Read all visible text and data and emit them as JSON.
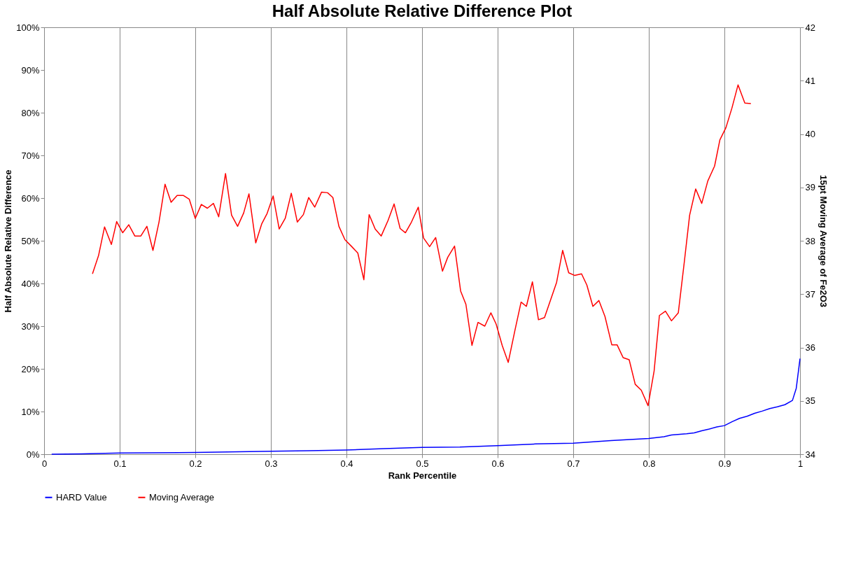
{
  "chart_data": {
    "type": "line",
    "title": "Half Absolute Relative Difference Plot",
    "xlabel": "Rank Percentile",
    "ylabel": "Half Absolute Relative Difference",
    "y2label": "15pt Moving Average of Fe2O3",
    "xlim": [
      0,
      1
    ],
    "xticks": [
      0,
      0.1,
      0.2,
      0.3,
      0.4,
      0.5,
      0.6,
      0.7,
      0.8,
      0.9,
      1
    ],
    "ylim": [
      0,
      100
    ],
    "yticks": [
      {
        "value": 0,
        "label": "0%"
      },
      {
        "value": 10,
        "label": "10%"
      },
      {
        "value": 20,
        "label": "20%"
      },
      {
        "value": 30,
        "label": "30%"
      },
      {
        "value": 40,
        "label": "40%"
      },
      {
        "value": 50,
        "label": "50%"
      },
      {
        "value": 60,
        "label": "60%"
      },
      {
        "value": 70,
        "label": "70%"
      },
      {
        "value": 80,
        "label": "80%"
      },
      {
        "value": 90,
        "label": "90%"
      },
      {
        "value": 100,
        "label": "100%"
      }
    ],
    "y2lim": [
      34,
      42
    ],
    "y2ticks": [
      34,
      35,
      36,
      37,
      38,
      39,
      40,
      41,
      42
    ],
    "grid": "x",
    "legend": "bottom",
    "marker": "none",
    "line_style": "solid",
    "series": [
      {
        "name": "HARD Value",
        "color": "#0000ff",
        "x": [
          0.01,
          0.05,
          0.1,
          0.2,
          0.3,
          0.35,
          0.4,
          0.45,
          0.5,
          0.55,
          0.6,
          0.65,
          0.7,
          0.75,
          0.8,
          0.82,
          0.83,
          0.85,
          0.86,
          0.87,
          0.88,
          0.89,
          0.9,
          0.91,
          0.92,
          0.93,
          0.94,
          0.95,
          0.96,
          0.97,
          0.98,
          0.99,
          0.995,
          1.0
        ],
        "values": [
          0,
          0.1,
          0.3,
          0.4,
          0.7,
          0.8,
          1.0,
          1.3,
          1.6,
          1.7,
          2.0,
          2.4,
          2.6,
          3.2,
          3.7,
          4.1,
          4.5,
          4.8,
          5.0,
          5.5,
          5.9,
          6.4,
          6.7,
          7.6,
          8.4,
          8.9,
          9.6,
          10.1,
          10.7,
          11.1,
          11.6,
          12.6,
          15.4,
          22.4
        ]
      },
      {
        "name": "Moving Average",
        "color": "#ff0000",
        "axis": "y2",
        "x": [
          0.064,
          0.072,
          0.08,
          0.089,
          0.096,
          0.104,
          0.112,
          0.12,
          0.128,
          0.136,
          0.144,
          0.152,
          0.16,
          0.168,
          0.176,
          0.184,
          0.192,
          0.2,
          0.208,
          0.216,
          0.224,
          0.231,
          0.24,
          0.248,
          0.256,
          0.264,
          0.271,
          0.28,
          0.288,
          0.295,
          0.303,
          0.311,
          0.319,
          0.327,
          0.335,
          0.343,
          0.35,
          0.358,
          0.367,
          0.375,
          0.382,
          0.39,
          0.398,
          0.407,
          0.415,
          0.423,
          0.43,
          0.438,
          0.446,
          0.455,
          0.463,
          0.471,
          0.478,
          0.486,
          0.495,
          0.502,
          0.51,
          0.518,
          0.527,
          0.534,
          0.543,
          0.551,
          0.558,
          0.566,
          0.574,
          0.583,
          0.591,
          0.598,
          0.606,
          0.614,
          0.623,
          0.631,
          0.638,
          0.646,
          0.654,
          0.662,
          0.671,
          0.678,
          0.686,
          0.694,
          0.702,
          0.711,
          0.718,
          0.726,
          0.734,
          0.742,
          0.751,
          0.758,
          0.766,
          0.774,
          0.782,
          0.79,
          0.799,
          0.807,
          0.814,
          0.822,
          0.83,
          0.839,
          0.847,
          0.854,
          0.862,
          0.87,
          0.878,
          0.887,
          0.894,
          0.902,
          0.91,
          0.918,
          0.927,
          0.935
        ],
        "values": [
          37.38,
          37.72,
          38.26,
          37.93,
          38.36,
          38.15,
          38.3,
          38.09,
          38.09,
          38.27,
          37.82,
          38.35,
          39.06,
          38.72,
          38.85,
          38.85,
          38.78,
          38.42,
          38.68,
          38.61,
          38.7,
          38.45,
          39.26,
          38.48,
          38.27,
          38.52,
          38.88,
          37.96,
          38.32,
          38.51,
          38.84,
          38.22,
          38.42,
          38.89,
          38.35,
          38.49,
          38.81,
          38.63,
          38.91,
          38.9,
          38.81,
          38.27,
          38.02,
          37.89,
          37.77,
          37.27,
          38.49,
          38.22,
          38.09,
          38.38,
          38.69,
          38.23,
          38.15,
          38.35,
          38.63,
          38.05,
          37.89,
          38.06,
          37.43,
          37.69,
          37.9,
          37.06,
          36.81,
          36.04,
          36.47,
          36.4,
          36.65,
          36.44,
          36.04,
          35.72,
          36.33,
          36.85,
          36.77,
          37.23,
          36.52,
          36.56,
          36.93,
          37.22,
          37.82,
          37.4,
          37.35,
          37.38,
          37.17,
          36.77,
          36.88,
          36.58,
          36.05,
          36.05,
          35.81,
          35.77,
          35.31,
          35.2,
          34.91,
          35.56,
          36.6,
          36.68,
          36.5,
          36.65,
          37.61,
          38.48,
          38.97,
          38.7,
          39.12,
          39.4,
          39.89,
          40.12,
          40.49,
          40.92,
          40.58,
          40.57
        ]
      }
    ]
  }
}
